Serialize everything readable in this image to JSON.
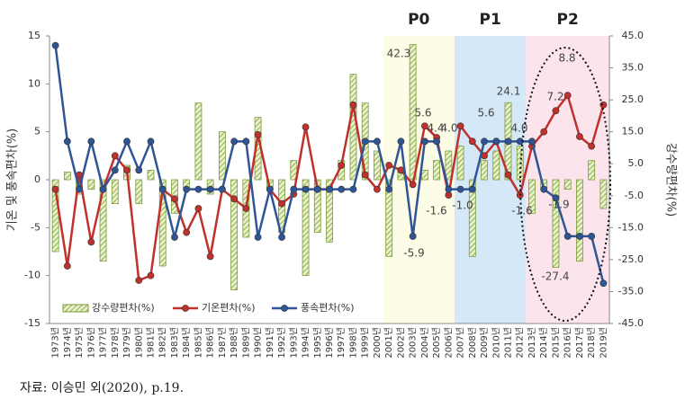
{
  "chart_data": {
    "type": "bar-line",
    "source": "자료: 이승민 외(2020), p.19.",
    "ylabel": "기온 및 풍속편차(%)",
    "y2label": "강수량편차(%)",
    "categories": [
      "1973년",
      "1974년",
      "1975년",
      "1976년",
      "1977년",
      "1978년",
      "1979년",
      "1980년",
      "1981년",
      "1982년",
      "1983년",
      "1984년",
      "1985년",
      "1986년",
      "1987년",
      "1988년",
      "1989년",
      "1990년",
      "1991년",
      "1992년",
      "1993년",
      "1994년",
      "1995년",
      "1996년",
      "1997년",
      "1998년",
      "1999년",
      "2000년",
      "2001년",
      "2002년",
      "2003년",
      "2004년",
      "2005년",
      "2006년",
      "2007년",
      "2008년",
      "2009년",
      "2010년",
      "2011년",
      "2012년",
      "2013년",
      "2014년",
      "2015년",
      "2016년",
      "2017년",
      "2018년",
      "2019년"
    ],
    "series": [
      {
        "name": "강수량편차(%)",
        "kind": "bar",
        "axis": "y2",
        "color": "#7a9a3a",
        "values": [
          -22.5,
          2.4,
          -4.5,
          -3,
          -25.5,
          -7.5,
          4.5,
          -7.5,
          3,
          -27,
          -10.5,
          -3,
          24,
          -4.5,
          15,
          -34.5,
          -18,
          19.5,
          -3,
          -16.5,
          6,
          -30,
          -16.5,
          -19.5,
          6,
          33,
          24,
          9,
          -24,
          3,
          42.3,
          3,
          6,
          9,
          10.5,
          -24,
          6,
          9,
          24.1,
          10.5,
          -10.5,
          -3,
          -27.4,
          -3,
          -25.5,
          6,
          -9
        ]
      },
      {
        "name": "기온편차(%)",
        "kind": "line",
        "color": "#c0302c",
        "values": [
          -1,
          -9,
          0.5,
          -6.5,
          -1,
          2.5,
          1,
          -10.5,
          -10,
          -1,
          -2,
          -5.5,
          -3,
          -8,
          -1,
          -2,
          -3,
          4.7,
          -1,
          -2.5,
          -1.5,
          5.5,
          -1,
          -1,
          1.5,
          7.8,
          0.5,
          -1,
          1.5,
          1,
          -0.5,
          5.6,
          4.4,
          -1.6,
          5.6,
          4.0,
          2.5,
          4.0,
          0.5,
          -1.6,
          3.5,
          5,
          7.2,
          8.8,
          4.5,
          3.5,
          7.8
        ]
      },
      {
        "name": "풍속편차(%)",
        "kind": "line",
        "color": "#2f5597",
        "values": [
          14,
          4,
          -1,
          4,
          -1,
          1,
          4,
          1,
          4,
          -1,
          -6,
          -1,
          -1,
          -1,
          -1,
          4,
          4,
          -6,
          -1,
          -6,
          -1,
          -1,
          -1,
          -1,
          -1,
          -1,
          4,
          4,
          -1,
          4,
          -5.9,
          4,
          4,
          -1,
          -1,
          -1,
          4,
          4,
          4,
          4,
          4,
          -1,
          -1.9,
          -5.9,
          -5.9,
          -5.9,
          -10.8
        ]
      }
    ],
    "ylim": [
      -15,
      15
    ],
    "yticks": [
      -15,
      -10,
      -5,
      0,
      5,
      10,
      15
    ],
    "y2lim": [
      -45,
      45
    ],
    "y2ticks": [
      {
        "value": -45,
        "label": "-45.0"
      },
      {
        "value": -35,
        "label": "-35.0"
      },
      {
        "value": -25,
        "label": "-25.0"
      },
      {
        "value": -15,
        "label": "-15.0"
      },
      {
        "value": -5,
        "label": "-5.0"
      },
      {
        "value": 5,
        "label": "5.0"
      },
      {
        "value": 15,
        "label": "15.0"
      },
      {
        "value": 25,
        "label": "25.0"
      },
      {
        "value": 35,
        "label": "35.0"
      },
      {
        "value": 45,
        "label": "45.0"
      }
    ],
    "periods": [
      {
        "label": "P0",
        "start": "2001년",
        "end": "2006년",
        "color": "#fdfce6"
      },
      {
        "label": "P1",
        "start": "2007년",
        "end": "2012년",
        "color": "#d4e8f7"
      },
      {
        "label": "P2",
        "start": "2013년",
        "end": "2019년",
        "color": "#fbe4ec"
      }
    ],
    "annotations": [
      "42.3",
      "5.6",
      "4.4",
      "4.0",
      "-1.6",
      "-5.9",
      "5.6",
      "-1.0",
      "24.1",
      "4.0",
      "-1.6",
      "8.8",
      "7.2",
      "-1.9",
      "-27.4"
    ]
  }
}
